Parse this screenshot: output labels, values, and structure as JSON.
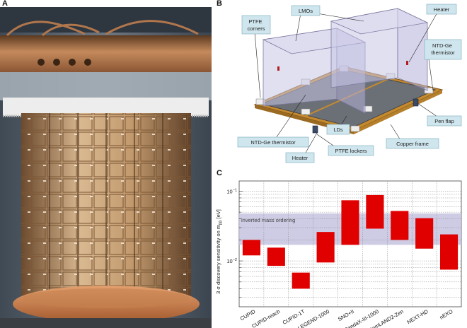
{
  "panels": {
    "a": "A",
    "b": "B",
    "c": "C"
  },
  "diagram": {
    "labels": {
      "lmos": "LMOs",
      "heater_top": "Heater",
      "ptfe_corners": "PTFE\ncorners",
      "ntd_ge_right": "NTD-Ge\nthermistor",
      "pen_flap": "Pen flap",
      "lds": "LDs",
      "copper_frame": "Copper frame",
      "ntd_ge_left": "NTD-Ge thermistor",
      "ptfe_lockers": "PTFE lockers",
      "heater_bottom": "Heater"
    }
  },
  "chart_data": {
    "type": "bar",
    "ylabel": "3 σ discovery sensitivity on m",
    "ylabel_sub": "ββ",
    "ylabel_unit": " [eV]",
    "y_scale": "log",
    "ylim": [
      0.0022,
      0.14
    ],
    "y_ticks": [
      {
        "value": 0.1,
        "base": "10",
        "exp": "−1"
      },
      {
        "value": 0.01,
        "base": "10",
        "exp": "−2"
      }
    ],
    "band": {
      "label": "inverted mass ordering",
      "low": 0.017,
      "high": 0.048
    },
    "color": "#e00000",
    "categories": [
      "CUPID",
      "CUPID-reach",
      "CUPID-1T",
      "LEGEND-1000",
      "SNO+II",
      "PandaX-III-1000",
      "KamLAND2-Zen",
      "NEXT-HD",
      "nEXO"
    ],
    "ranges": [
      {
        "low": 0.012,
        "high": 0.02
      },
      {
        "low": 0.0085,
        "high": 0.0155
      },
      {
        "low": 0.004,
        "high": 0.0068
      },
      {
        "low": 0.0095,
        "high": 0.026
      },
      {
        "low": 0.017,
        "high": 0.074
      },
      {
        "low": 0.029,
        "high": 0.088
      },
      {
        "low": 0.02,
        "high": 0.052
      },
      {
        "low": 0.015,
        "high": 0.041
      },
      {
        "low": 0.0075,
        "high": 0.024
      }
    ],
    "grid": true
  }
}
